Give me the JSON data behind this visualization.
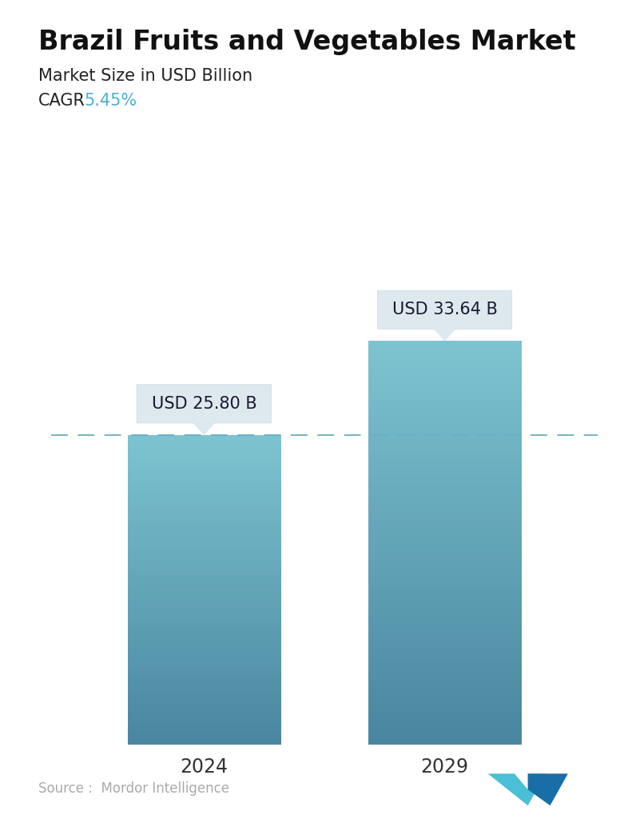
{
  "title": "Brazil Fruits and Vegetables Market",
  "subtitle": "Market Size in USD Billion",
  "cagr_label": "CAGR",
  "cagr_value": "5.45%",
  "cagr_color": "#4BAFD4",
  "categories": [
    "2024",
    "2029"
  ],
  "values": [
    25.8,
    33.64
  ],
  "bar_labels": [
    "USD 25.80 B",
    "USD 33.64 B"
  ],
  "bar_top_color": "#7DC4D0",
  "bar_bottom_color": "#4A86A0",
  "dashed_line_color": "#6AAEC8",
  "dashed_line_value": 25.8,
  "background_color": "#FFFFFF",
  "title_fontsize": 24,
  "subtitle_fontsize": 15,
  "cagr_fontsize": 15,
  "tick_fontsize": 17,
  "annotation_fontsize": 15,
  "source_text": "Source :  Mordor Intelligence",
  "source_color": "#AAAAAA",
  "ylim": [
    0,
    40
  ],
  "bar_width": 0.28
}
